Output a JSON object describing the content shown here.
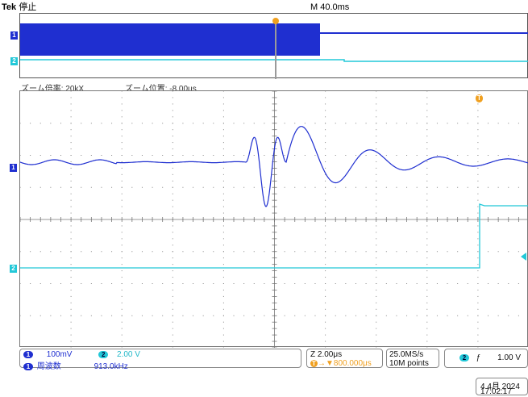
{
  "header": {
    "brand": "Tek",
    "status": "停止",
    "timebase": "M 40.0ms"
  },
  "zoom": {
    "factor_label": "ズーム倍率: 20kX",
    "position_label": "ズーム位置: -8.00μs"
  },
  "markers": {
    "ch1": "1",
    "ch2": "2",
    "trigger": "T"
  },
  "readouts": {
    "ch1_scale": "100mV",
    "ch2_badge": "2",
    "ch2_scale": "2.00 V",
    "freq_label": "周波数",
    "freq_value": "913.0kHz",
    "time_scale": "Z 2.00μs",
    "trig_pos_badge": "T",
    "trig_pos": "→▼800.000μs",
    "sample_rate": "25.0MS/s",
    "record_length": "10M points",
    "trig_ch_badge": "2",
    "trig_slope": "ƒ",
    "trig_level": "1.00 V",
    "date": "4 4月  2024",
    "time": "17:02:17"
  },
  "colors": {
    "ch1": "#1f2fd0",
    "ch2": "#22c8d8",
    "trigger": "#f0a020",
    "grid": "#888888"
  }
}
